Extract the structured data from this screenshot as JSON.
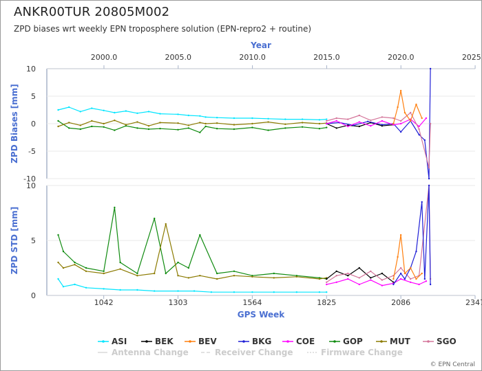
{
  "header": {
    "title": "ANKR00TUR 20805M002",
    "subtitle": "ZPD biases wrt weekly EPN troposphere solution (EPN-repro2 + routine)"
  },
  "footer": {
    "credit": "© EPN Central"
  },
  "colors": {
    "ASI": "#00e5ff",
    "BEK": "#000000",
    "BEV": "#ff7f0e",
    "BKG": "#1f1fd6",
    "COE": "#ff00ff",
    "GOP": "#0e8a0e",
    "MUT": "#8b7a00",
    "SGO": "#d4759a",
    "axis_label": "#4a6fd1",
    "axis_line": "#a7b3c9",
    "grid": "#e9e9e9"
  },
  "chart_data": [
    {
      "type": "line",
      "ylabel": "ZPD Biases [mm]",
      "ylim": [
        -10,
        10
      ],
      "yticks": [
        -10,
        -5,
        0,
        5,
        10
      ],
      "top_axis": {
        "label": "Year",
        "ticks": [
          "2000.0",
          "2005.0",
          "2010.0",
          "2015.0",
          "2020.0",
          "2025.0"
        ]
      },
      "series": [
        {
          "name": "ASI",
          "x": [
            882,
            920,
            960,
            1000,
            1042,
            1080,
            1120,
            1160,
            1200,
            1240,
            1303,
            1340,
            1380,
            1400,
            1440,
            1500,
            1564,
            1620,
            1680,
            1740,
            1800,
            1825
          ],
          "values": [
            2.5,
            3.0,
            2.2,
            2.8,
            2.4,
            2.0,
            2.3,
            1.9,
            2.2,
            1.8,
            1.7,
            1.5,
            1.4,
            1.2,
            1.1,
            1.0,
            1.0,
            0.9,
            0.8,
            0.8,
            0.7,
            0.8
          ]
        },
        {
          "name": "GOP",
          "x": [
            882,
            920,
            960,
            1000,
            1042,
            1080,
            1120,
            1160,
            1200,
            1240,
            1303,
            1340,
            1380,
            1400,
            1440,
            1500,
            1564,
            1620,
            1680,
            1740,
            1800,
            1825
          ],
          "values": [
            0.5,
            -0.8,
            -1.0,
            -0.5,
            -0.6,
            -1.2,
            -0.4,
            -0.8,
            -1.0,
            -0.9,
            -1.1,
            -0.8,
            -1.6,
            -0.5,
            -0.9,
            -1.0,
            -0.7,
            -1.2,
            -0.8,
            -0.6,
            -0.9,
            -0.7
          ]
        },
        {
          "name": "MUT",
          "x": [
            882,
            920,
            960,
            1000,
            1042,
            1080,
            1120,
            1160,
            1200,
            1240,
            1303,
            1340,
            1380,
            1400,
            1440,
            1500,
            1564,
            1620,
            1680,
            1740,
            1800,
            1825
          ],
          "values": [
            -0.5,
            0.2,
            -0.3,
            0.5,
            0.0,
            0.6,
            -0.2,
            0.3,
            -0.4,
            0.2,
            0.1,
            -0.3,
            0.2,
            0.0,
            0.1,
            -0.2,
            0.0,
            0.3,
            -0.1,
            0.2,
            0.0,
            0.1
          ]
        },
        {
          "name": "BEK",
          "x": [
            1825,
            1860,
            1900,
            1940,
            1980,
            2020,
            2060
          ],
          "values": [
            0.0,
            -0.8,
            -0.3,
            -0.5,
            0.2,
            -0.4,
            -0.2
          ]
        },
        {
          "name": "BKG",
          "x": [
            1825,
            1870,
            1920,
            1970,
            2020,
            2060,
            2086,
            2120,
            2150,
            2170,
            2185,
            2190
          ],
          "values": [
            0.0,
            0.2,
            -0.3,
            0.4,
            -0.2,
            0.0,
            -1.5,
            0.5,
            -2.0,
            -3.0,
            -10.0,
            10.0
          ]
        },
        {
          "name": "COE",
          "x": [
            1825,
            1860,
            1900,
            1940,
            1980,
            2020,
            2060,
            2086,
            2120,
            2150,
            2175
          ],
          "values": [
            0.0,
            0.5,
            -0.5,
            0.3,
            -0.4,
            0.5,
            -0.2,
            0.0,
            0.8,
            -0.5,
            1.0
          ]
        },
        {
          "name": "SGO",
          "x": [
            1825,
            1860,
            1900,
            1940,
            1980,
            2020,
            2060,
            2086,
            2120,
            2150,
            2185,
            2190
          ],
          "values": [
            0.5,
            1.0,
            0.8,
            1.5,
            0.6,
            1.2,
            1.0,
            0.5,
            2.0,
            -1.0,
            -8.0,
            0.0
          ]
        },
        {
          "name": "BEV",
          "x": [
            2060,
            2075,
            2086,
            2100,
            2120,
            2140,
            2160
          ],
          "values": [
            0.0,
            3.0,
            6.0,
            2.0,
            0.5,
            3.5,
            1.0
          ]
        }
      ]
    },
    {
      "type": "line",
      "ylabel": "ZPD STD [mm]",
      "ylim": [
        0,
        10
      ],
      "yticks": [
        0,
        5,
        10
      ],
      "xlabel": "GPS Week",
      "xlim": [
        842,
        2347
      ],
      "xticks": [
        "1042",
        "1303",
        "1564",
        "1825",
        "2086",
        "2347"
      ],
      "series": [
        {
          "name": "ASI",
          "x": [
            882,
            900,
            940,
            980,
            1042,
            1100,
            1160,
            1220,
            1303,
            1360,
            1420,
            1500,
            1564,
            1640,
            1720,
            1800,
            1825
          ],
          "values": [
            1.5,
            0.8,
            1.0,
            0.7,
            0.6,
            0.5,
            0.5,
            0.4,
            0.4,
            0.4,
            0.3,
            0.3,
            0.3,
            0.3,
            0.3,
            0.3,
            0.3
          ]
        },
        {
          "name": "GOP",
          "x": [
            882,
            900,
            940,
            980,
            1042,
            1080,
            1100,
            1160,
            1220,
            1260,
            1303,
            1340,
            1380,
            1440,
            1500,
            1564,
            1640,
            1720,
            1800,
            1825
          ],
          "values": [
            5.5,
            4.0,
            3.0,
            2.5,
            2.2,
            8.0,
            3.0,
            2.0,
            7.0,
            2.0,
            3.0,
            2.5,
            5.5,
            2.0,
            2.2,
            1.8,
            2.0,
            1.8,
            1.6,
            1.5
          ]
        },
        {
          "name": "MUT",
          "x": [
            882,
            900,
            940,
            980,
            1042,
            1100,
            1160,
            1220,
            1260,
            1303,
            1340,
            1380,
            1440,
            1500,
            1564,
            1640,
            1720,
            1800,
            1825
          ],
          "values": [
            3.0,
            2.5,
            2.8,
            2.2,
            2.0,
            2.4,
            1.8,
            2.0,
            6.5,
            1.8,
            1.6,
            1.8,
            1.5,
            1.8,
            1.7,
            1.6,
            1.7,
            1.5,
            1.6
          ]
        },
        {
          "name": "BEK",
          "x": [
            1825,
            1860,
            1900,
            1940,
            1980,
            2020,
            2060
          ],
          "values": [
            1.5,
            2.2,
            1.8,
            2.5,
            1.6,
            2.0,
            1.2
          ]
        },
        {
          "name": "COE",
          "x": [
            1825,
            1860,
            1900,
            1940,
            1980,
            2020,
            2060,
            2086,
            2120,
            2150,
            2175
          ],
          "values": [
            1.0,
            1.2,
            1.5,
            1.0,
            1.4,
            0.9,
            1.1,
            1.5,
            1.2,
            1.0,
            1.3
          ]
        },
        {
          "name": "SGO",
          "x": [
            1825,
            1860,
            1900,
            1940,
            1980,
            2020,
            2060,
            2086,
            2120,
            2150,
            2185,
            2190
          ],
          "values": [
            1.2,
            1.8,
            2.0,
            1.6,
            2.2,
            1.4,
            1.8,
            2.5,
            1.5,
            1.8,
            10.0,
            1.5
          ]
        },
        {
          "name": "BKG",
          "x": [
            2060,
            2086,
            2100,
            2120,
            2140,
            2160,
            2170,
            2185,
            2190
          ],
          "values": [
            1.0,
            2.0,
            1.5,
            2.5,
            4.0,
            8.5,
            1.5,
            10.0,
            1.0
          ]
        },
        {
          "name": "BEV",
          "x": [
            2060,
            2075,
            2086,
            2100,
            2120,
            2140,
            2160
          ],
          "values": [
            1.5,
            3.5,
            5.5,
            2.0,
            2.5,
            1.5,
            2.0
          ]
        }
      ]
    }
  ],
  "legend": {
    "placement": "bottom",
    "items": [
      "ASI",
      "BEK",
      "BEV",
      "BKG",
      "COE",
      "GOP",
      "MUT",
      "SGO"
    ],
    "disabled_items": [
      "Antenna Change",
      "Receiver Change",
      "Firmware Change"
    ]
  }
}
